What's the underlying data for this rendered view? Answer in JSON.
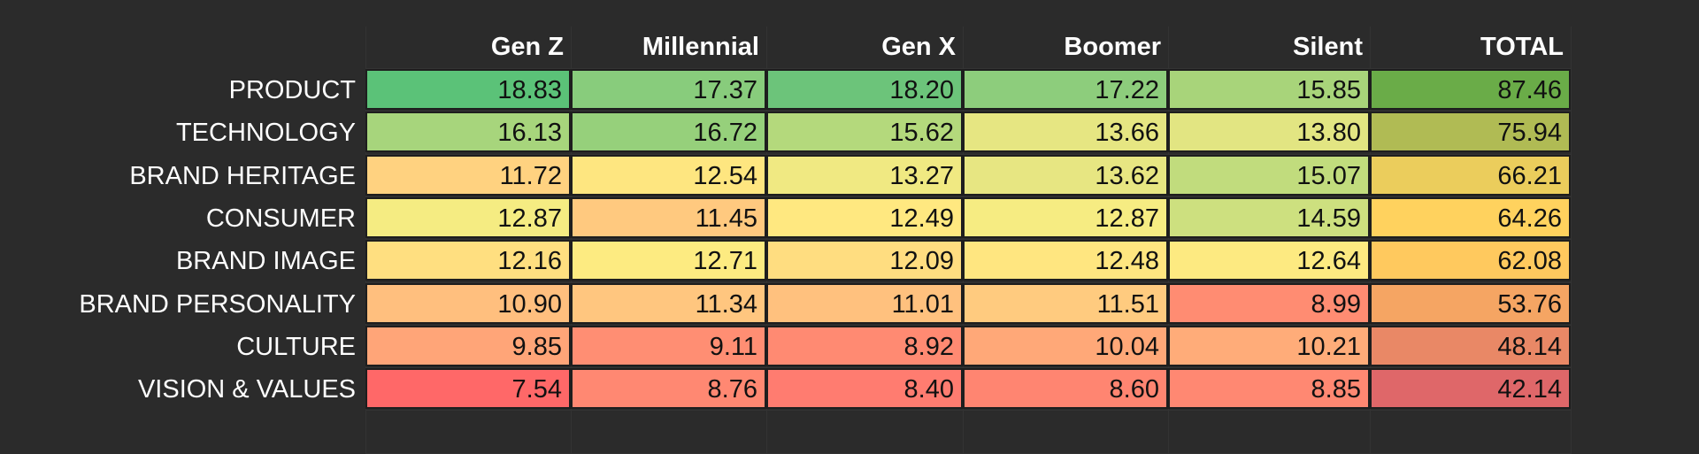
{
  "chart_data": {
    "type": "heatmap",
    "columns": [
      "Gen Z",
      "Millennial",
      "Gen X",
      "Boomer",
      "Silent",
      "TOTAL"
    ],
    "rows": [
      {
        "label": "PRODUCT",
        "values": [
          "18.83",
          "17.37",
          "18.20",
          "17.22",
          "15.85",
          "87.46"
        ],
        "colors": [
          "#5bc278",
          "#88cc7c",
          "#6cc47a",
          "#8dcd7c",
          "#a8d47a",
          "#6aac48"
        ]
      },
      {
        "label": "TECHNOLOGY",
        "values": [
          "16.13",
          "16.72",
          "15.62",
          "13.66",
          "13.80",
          "75.94"
        ],
        "colors": [
          "#a7d57c",
          "#96d07b",
          "#b4d97c",
          "#e6e682",
          "#e2e582",
          "#b0bb54"
        ]
      },
      {
        "label": "BRAND HERITAGE",
        "values": [
          "11.72",
          "12.54",
          "13.27",
          "13.62",
          "15.07",
          "66.21"
        ],
        "colors": [
          "#ffd280",
          "#fee680",
          "#f0e982",
          "#e7e682",
          "#c1dc7d",
          "#ebcd5c"
        ]
      },
      {
        "label": "CONSUMER",
        "values": [
          "12.87",
          "11.45",
          "12.49",
          "12.87",
          "14.59",
          "64.26"
        ],
        "colors": [
          "#f5ec82",
          "#ffc97f",
          "#ffe880",
          "#f6ec82",
          "#cde07f",
          "#ffd25e"
        ]
      },
      {
        "label": "BRAND IMAGE",
        "values": [
          "12.16",
          "12.71",
          "12.09",
          "12.48",
          "12.64",
          "62.08"
        ],
        "colors": [
          "#ffdf80",
          "#fdeb81",
          "#ffdd80",
          "#ffe680",
          "#fdea81",
          "#ffc95e"
        ]
      },
      {
        "label": "BRAND PERSONALITY",
        "values": [
          "10.90",
          "11.34",
          "11.01",
          "11.51",
          "8.99",
          "53.76"
        ],
        "colors": [
          "#ffbf7e",
          "#ffc67f",
          "#ffc17e",
          "#ffcb7f",
          "#ff8c72",
          "#f5a563"
        ]
      },
      {
        "label": "CULTURE",
        "values": [
          "9.85",
          "9.11",
          "8.92",
          "10.04",
          "10.21",
          "48.14"
        ],
        "colors": [
          "#ffa578",
          "#ff8e73",
          "#ff8a72",
          "#ffa878",
          "#ffac79",
          "#e98866"
        ]
      },
      {
        "label": "VISION & VALUES",
        "values": [
          "7.54",
          "8.76",
          "8.40",
          "8.60",
          "8.85",
          "42.14"
        ],
        "colors": [
          "#ff6868",
          "#ff8872",
          "#ff7c70",
          "#ff8571",
          "#ff8872",
          "#df6769"
        ]
      }
    ]
  }
}
